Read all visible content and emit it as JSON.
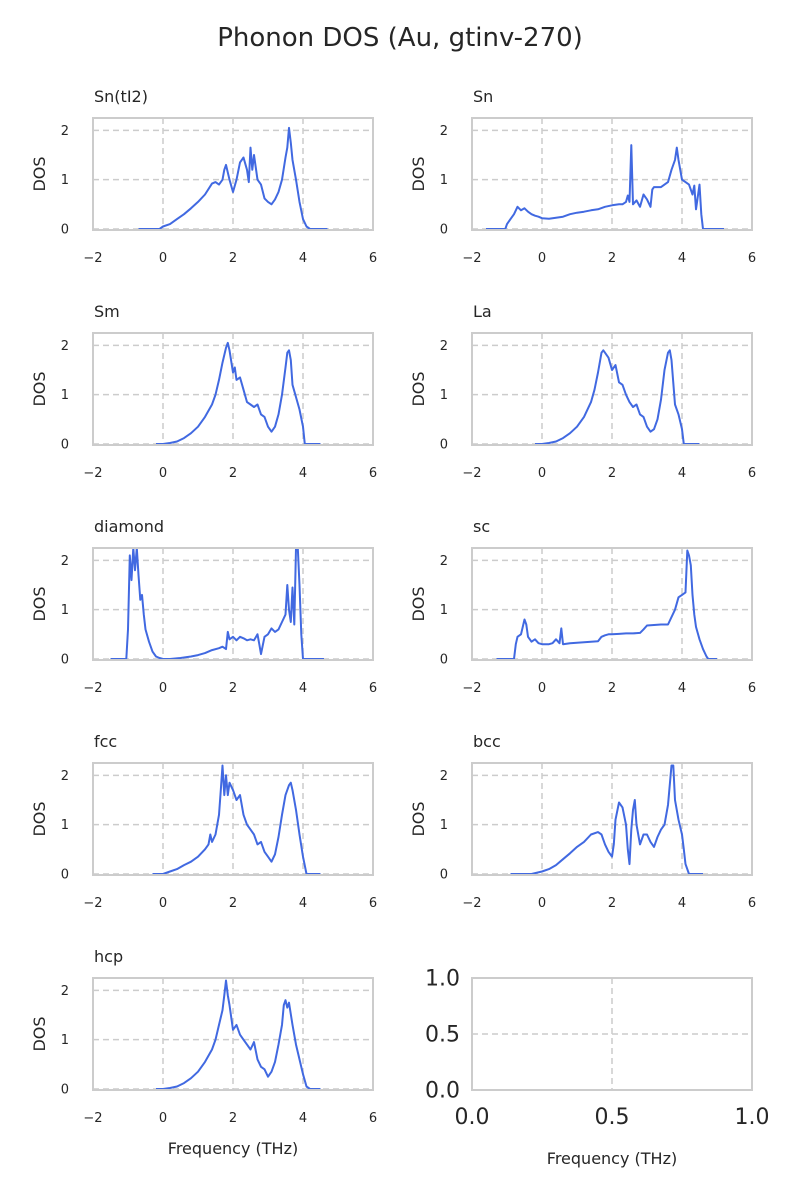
{
  "figure_title": "Phonon DOS (Au, gtinv-270)",
  "chart_data": [
    {
      "type": "line",
      "title": "Sn(tI2)",
      "xlabel": "",
      "ylabel": "DOS",
      "xlim": [
        -2,
        6
      ],
      "ylim": [
        -0.02,
        2.25
      ],
      "xticks": [
        -2,
        0,
        2,
        4,
        6
      ],
      "yticks": [
        0,
        1,
        2
      ],
      "grid": true,
      "line_color": "#4169e1",
      "x": [
        -0.7,
        -0.1,
        0.0,
        0.2,
        0.4,
        0.6,
        0.8,
        1.0,
        1.2,
        1.4,
        1.5,
        1.6,
        1.7,
        1.75,
        1.8,
        1.9,
        2.0,
        2.1,
        2.2,
        2.3,
        2.4,
        2.45,
        2.5,
        2.55,
        2.6,
        2.7,
        2.8,
        2.9,
        3.0,
        3.1,
        3.2,
        3.3,
        3.4,
        3.5,
        3.55,
        3.6,
        3.65,
        3.7,
        3.8,
        3.9,
        4.0,
        4.1,
        4.2,
        4.7
      ],
      "y": [
        0.0,
        0.0,
        0.05,
        0.1,
        0.2,
        0.3,
        0.42,
        0.55,
        0.7,
        0.92,
        0.95,
        0.9,
        1.0,
        1.2,
        1.3,
        1.0,
        0.75,
        1.0,
        1.35,
        1.45,
        1.2,
        0.95,
        1.65,
        1.2,
        1.5,
        1.0,
        0.9,
        0.62,
        0.55,
        0.5,
        0.6,
        0.75,
        1.0,
        1.45,
        1.65,
        2.05,
        1.75,
        1.4,
        1.0,
        0.55,
        0.2,
        0.05,
        0.0,
        0.0
      ]
    },
    {
      "type": "line",
      "title": "Sn",
      "xlabel": "",
      "ylabel": "DOS",
      "xlim": [
        -2,
        6
      ],
      "ylim": [
        -0.02,
        2.25
      ],
      "xticks": [
        -2,
        0,
        2,
        4,
        6
      ],
      "yticks": [
        0,
        1,
        2
      ],
      "grid": true,
      "line_color": "#4169e1",
      "x": [
        -1.6,
        -1.05,
        -1.0,
        -0.9,
        -0.8,
        -0.7,
        -0.6,
        -0.5,
        -0.4,
        -0.3,
        -0.2,
        -0.1,
        0.0,
        0.2,
        0.4,
        0.6,
        0.8,
        1.0,
        1.2,
        1.4,
        1.6,
        1.8,
        2.0,
        2.2,
        2.3,
        2.4,
        2.45,
        2.5,
        2.55,
        2.6,
        2.7,
        2.8,
        2.9,
        3.0,
        3.1,
        3.15,
        3.2,
        3.4,
        3.6,
        3.7,
        3.8,
        3.85,
        3.9,
        4.0,
        4.1,
        4.2,
        4.3,
        4.35,
        4.4,
        4.5,
        4.55,
        4.6,
        5.2
      ],
      "y": [
        0.0,
        0.0,
        0.1,
        0.2,
        0.3,
        0.45,
        0.38,
        0.42,
        0.35,
        0.3,
        0.27,
        0.25,
        0.22,
        0.21,
        0.23,
        0.25,
        0.3,
        0.33,
        0.35,
        0.38,
        0.4,
        0.45,
        0.48,
        0.5,
        0.5,
        0.55,
        0.68,
        0.55,
        1.7,
        0.5,
        0.58,
        0.45,
        0.7,
        0.6,
        0.45,
        0.8,
        0.85,
        0.85,
        0.95,
        1.2,
        1.4,
        1.65,
        1.4,
        1.0,
        0.95,
        0.9,
        0.7,
        0.88,
        0.4,
        0.9,
        0.3,
        0.0,
        0.0
      ]
    },
    {
      "type": "line",
      "title": "Sm",
      "xlabel": "",
      "ylabel": "DOS",
      "xlim": [
        -2,
        6
      ],
      "ylim": [
        -0.02,
        2.25
      ],
      "xticks": [
        -2,
        0,
        2,
        4,
        6
      ],
      "yticks": [
        0,
        1,
        2
      ],
      "grid": true,
      "line_color": "#4169e1",
      "x": [
        -0.2,
        0.0,
        0.2,
        0.4,
        0.6,
        0.8,
        1.0,
        1.2,
        1.4,
        1.5,
        1.6,
        1.7,
        1.8,
        1.85,
        1.9,
        2.0,
        2.05,
        2.1,
        2.2,
        2.3,
        2.4,
        2.5,
        2.6,
        2.7,
        2.8,
        2.9,
        3.0,
        3.1,
        3.2,
        3.3,
        3.4,
        3.5,
        3.55,
        3.6,
        3.65,
        3.7,
        3.8,
        3.9,
        4.0,
        4.05,
        4.5
      ],
      "y": [
        0.0,
        0.0,
        0.02,
        0.05,
        0.12,
        0.22,
        0.35,
        0.55,
        0.8,
        1.0,
        1.3,
        1.65,
        1.95,
        2.05,
        1.9,
        1.45,
        1.55,
        1.3,
        1.35,
        1.1,
        0.85,
        0.8,
        0.75,
        0.8,
        0.6,
        0.55,
        0.35,
        0.25,
        0.35,
        0.6,
        1.0,
        1.55,
        1.85,
        1.9,
        1.7,
        1.2,
        0.95,
        0.7,
        0.35,
        0.0,
        0.0
      ]
    },
    {
      "type": "line",
      "title": "La",
      "xlabel": "",
      "ylabel": "DOS",
      "xlim": [
        -2,
        6
      ],
      "ylim": [
        -0.02,
        2.25
      ],
      "xticks": [
        -2,
        0,
        2,
        4,
        6
      ],
      "yticks": [
        0,
        1,
        2
      ],
      "grid": true,
      "line_color": "#4169e1",
      "x": [
        -0.2,
        0.0,
        0.2,
        0.4,
        0.6,
        0.8,
        1.0,
        1.2,
        1.4,
        1.5,
        1.6,
        1.7,
        1.75,
        1.8,
        1.9,
        2.0,
        2.1,
        2.2,
        2.3,
        2.4,
        2.5,
        2.6,
        2.7,
        2.8,
        2.9,
        3.0,
        3.1,
        3.2,
        3.3,
        3.4,
        3.5,
        3.6,
        3.65,
        3.7,
        3.8,
        3.9,
        4.0,
        4.05,
        4.5
      ],
      "y": [
        0.0,
        0.0,
        0.02,
        0.05,
        0.12,
        0.22,
        0.35,
        0.55,
        0.85,
        1.1,
        1.45,
        1.85,
        1.9,
        1.85,
        1.75,
        1.5,
        1.6,
        1.25,
        1.2,
        1.0,
        0.85,
        0.75,
        0.8,
        0.6,
        0.55,
        0.35,
        0.25,
        0.3,
        0.5,
        0.9,
        1.5,
        1.85,
        1.9,
        1.7,
        0.8,
        0.6,
        0.3,
        0.0,
        0.0
      ]
    },
    {
      "type": "line",
      "title": "diamond",
      "xlabel": "",
      "ylabel": "DOS",
      "xlim": [
        -2,
        6
      ],
      "ylim": [
        -0.02,
        2.25
      ],
      "xticks": [
        -2,
        0,
        2,
        4,
        6
      ],
      "yticks": [
        0,
        1,
        2
      ],
      "grid": true,
      "line_color": "#4169e1",
      "x": [
        -1.5,
        -1.05,
        -1.0,
        -0.95,
        -0.9,
        -0.85,
        -0.8,
        -0.75,
        -0.7,
        -0.65,
        -0.6,
        -0.55,
        -0.5,
        -0.4,
        -0.3,
        -0.2,
        -0.1,
        0.0,
        0.2,
        0.5,
        0.8,
        1.0,
        1.2,
        1.4,
        1.6,
        1.7,
        1.8,
        1.85,
        1.9,
        2.0,
        2.1,
        2.2,
        2.3,
        2.4,
        2.5,
        2.6,
        2.7,
        2.75,
        2.8,
        2.9,
        3.0,
        3.1,
        3.2,
        3.3,
        3.4,
        3.5,
        3.55,
        3.6,
        3.65,
        3.7,
        3.75,
        3.8,
        3.85,
        3.9,
        3.95,
        4.0,
        4.1,
        4.6
      ],
      "y": [
        0.0,
        0.0,
        0.6,
        2.1,
        1.6,
        2.3,
        1.8,
        2.3,
        1.7,
        1.2,
        1.3,
        0.9,
        0.6,
        0.35,
        0.15,
        0.05,
        0.02,
        0.0,
        0.0,
        0.02,
        0.05,
        0.08,
        0.12,
        0.18,
        0.22,
        0.25,
        0.2,
        0.55,
        0.4,
        0.45,
        0.38,
        0.45,
        0.42,
        0.38,
        0.4,
        0.38,
        0.5,
        0.3,
        0.1,
        0.45,
        0.5,
        0.62,
        0.55,
        0.6,
        0.75,
        0.9,
        1.5,
        1.0,
        0.75,
        1.45,
        0.7,
        2.3,
        2.3,
        1.5,
        0.5,
        0.0,
        0.0,
        0.0
      ]
    },
    {
      "type": "line",
      "title": "sc",
      "xlabel": "",
      "ylabel": "DOS",
      "xlim": [
        -2,
        6
      ],
      "ylim": [
        -0.02,
        2.25
      ],
      "xticks": [
        -2,
        0,
        2,
        4,
        6
      ],
      "yticks": [
        0,
        1,
        2
      ],
      "grid": true,
      "line_color": "#4169e1",
      "x": [
        -1.3,
        -0.8,
        -0.75,
        -0.7,
        -0.6,
        -0.5,
        -0.45,
        -0.4,
        -0.3,
        -0.2,
        -0.1,
        0.0,
        0.2,
        0.3,
        0.4,
        0.5,
        0.55,
        0.6,
        0.8,
        1.0,
        1.2,
        1.4,
        1.6,
        1.7,
        1.8,
        1.9,
        2.0,
        2.2,
        2.4,
        2.6,
        2.8,
        2.9,
        3.0,
        3.2,
        3.4,
        3.5,
        3.6,
        3.8,
        3.9,
        4.0,
        4.1,
        4.15,
        4.2,
        4.25,
        4.3,
        4.35,
        4.4,
        4.5,
        4.6,
        4.7,
        4.75,
        5.0
      ],
      "y": [
        0.0,
        0.0,
        0.3,
        0.45,
        0.5,
        0.8,
        0.7,
        0.45,
        0.35,
        0.4,
        0.32,
        0.3,
        0.3,
        0.32,
        0.4,
        0.32,
        0.62,
        0.3,
        0.32,
        0.33,
        0.34,
        0.35,
        0.36,
        0.45,
        0.48,
        0.5,
        0.5,
        0.51,
        0.52,
        0.52,
        0.53,
        0.6,
        0.68,
        0.69,
        0.7,
        0.7,
        0.7,
        1.0,
        1.25,
        1.3,
        1.35,
        2.2,
        2.1,
        1.9,
        1.3,
        0.9,
        0.65,
        0.4,
        0.2,
        0.05,
        0.0,
        0.0
      ]
    },
    {
      "type": "line",
      "title": "fcc",
      "xlabel": "",
      "ylabel": "DOS",
      "xlim": [
        -2,
        6
      ],
      "ylim": [
        -0.02,
        2.25
      ],
      "xticks": [
        -2,
        0,
        2,
        4,
        6
      ],
      "yticks": [
        0,
        1,
        2
      ],
      "grid": true,
      "line_color": "#4169e1",
      "x": [
        -0.3,
        0.0,
        0.2,
        0.4,
        0.6,
        0.8,
        1.0,
        1.2,
        1.3,
        1.35,
        1.4,
        1.5,
        1.6,
        1.65,
        1.7,
        1.75,
        1.8,
        1.85,
        1.9,
        2.0,
        2.1,
        2.2,
        2.3,
        2.4,
        2.5,
        2.6,
        2.7,
        2.8,
        2.9,
        3.0,
        3.1,
        3.2,
        3.3,
        3.4,
        3.5,
        3.6,
        3.65,
        3.7,
        3.8,
        3.9,
        4.0,
        4.1,
        4.5
      ],
      "y": [
        0.0,
        0.0,
        0.05,
        0.1,
        0.18,
        0.25,
        0.35,
        0.5,
        0.6,
        0.8,
        0.65,
        0.8,
        1.2,
        1.7,
        2.2,
        1.6,
        2.0,
        1.6,
        1.85,
        1.7,
        1.5,
        1.6,
        1.2,
        1.0,
        0.9,
        0.8,
        0.6,
        0.65,
        0.45,
        0.35,
        0.25,
        0.4,
        0.75,
        1.2,
        1.6,
        1.8,
        1.85,
        1.7,
        1.3,
        0.8,
        0.35,
        0.0,
        0.0
      ]
    },
    {
      "type": "line",
      "title": "bcc",
      "xlabel": "",
      "ylabel": "DOS",
      "xlim": [
        -2,
        6
      ],
      "ylim": [
        -0.02,
        2.25
      ],
      "xticks": [
        -2,
        0,
        2,
        4,
        6
      ],
      "yticks": [
        0,
        1,
        2
      ],
      "grid": true,
      "line_color": "#4169e1",
      "x": [
        -0.9,
        -0.3,
        0.0,
        0.2,
        0.4,
        0.6,
        0.8,
        1.0,
        1.2,
        1.4,
        1.6,
        1.7,
        1.8,
        1.9,
        2.0,
        2.05,
        2.1,
        2.2,
        2.3,
        2.4,
        2.45,
        2.5,
        2.55,
        2.6,
        2.65,
        2.7,
        2.8,
        2.9,
        3.0,
        3.1,
        3.2,
        3.3,
        3.4,
        3.5,
        3.6,
        3.7,
        3.75,
        3.8,
        3.9,
        4.0,
        4.05,
        4.1,
        4.2,
        4.6
      ],
      "y": [
        0.0,
        0.0,
        0.05,
        0.1,
        0.18,
        0.3,
        0.42,
        0.55,
        0.65,
        0.8,
        0.85,
        0.8,
        0.6,
        0.45,
        0.35,
        0.6,
        1.1,
        1.45,
        1.35,
        1.0,
        0.5,
        0.2,
        0.9,
        1.3,
        1.5,
        1.0,
        0.6,
        0.8,
        0.8,
        0.65,
        0.55,
        0.75,
        0.9,
        1.0,
        1.4,
        2.2,
        2.2,
        1.5,
        1.1,
        0.8,
        0.5,
        0.2,
        0.0,
        0.0
      ]
    },
    {
      "type": "line",
      "title": "hcp",
      "xlabel": "Frequency (THz)",
      "ylabel": "DOS",
      "xlim": [
        -2,
        6
      ],
      "ylim": [
        -0.02,
        2.25
      ],
      "xticks": [
        -2,
        0,
        2,
        4,
        6
      ],
      "yticks": [
        0,
        1,
        2
      ],
      "grid": true,
      "line_color": "#4169e1",
      "x": [
        -0.2,
        0.0,
        0.2,
        0.4,
        0.6,
        0.8,
        1.0,
        1.2,
        1.4,
        1.5,
        1.6,
        1.7,
        1.75,
        1.8,
        1.85,
        1.9,
        2.0,
        2.1,
        2.2,
        2.3,
        2.4,
        2.5,
        2.6,
        2.7,
        2.8,
        2.9,
        3.0,
        3.1,
        3.2,
        3.3,
        3.4,
        3.45,
        3.5,
        3.55,
        3.6,
        3.7,
        3.8,
        3.9,
        4.0,
        4.1,
        4.2,
        4.5
      ],
      "y": [
        0.0,
        0.0,
        0.02,
        0.05,
        0.12,
        0.22,
        0.35,
        0.55,
        0.8,
        1.0,
        1.3,
        1.6,
        1.9,
        2.2,
        1.9,
        1.7,
        1.2,
        1.3,
        1.1,
        1.0,
        0.9,
        0.8,
        0.95,
        0.6,
        0.45,
        0.4,
        0.25,
        0.35,
        0.55,
        0.9,
        1.3,
        1.7,
        1.8,
        1.65,
        1.75,
        1.3,
        0.9,
        0.6,
        0.3,
        0.05,
        0.0,
        0.0
      ]
    },
    {
      "type": "line",
      "title": "",
      "xlabel": "Frequency (THz)",
      "ylabel": "",
      "xlim": [
        0,
        1
      ],
      "ylim": [
        0,
        1
      ],
      "xticks": [
        0.0,
        0.5,
        1.0
      ],
      "yticks": [
        0.0,
        0.5,
        1.0
      ],
      "xtick_labels": [
        "0.0",
        "0.5",
        "1.0"
      ],
      "ytick_labels": [
        "0.0",
        "0.5",
        "1.0"
      ],
      "grid": true,
      "line_color": "#4169e1",
      "x": [],
      "y": []
    }
  ]
}
